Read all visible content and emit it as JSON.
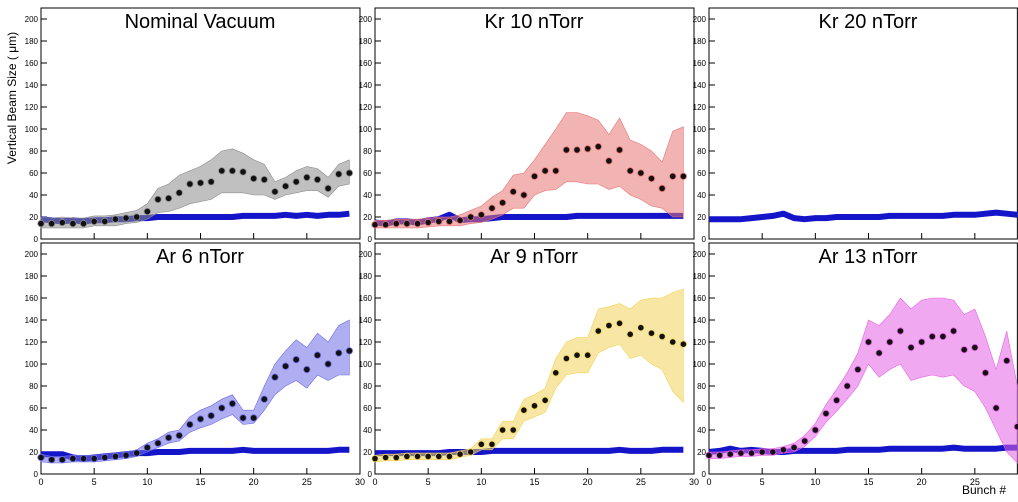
{
  "chart_data": [
    {
      "type": "line",
      "title": "Nominal Vacuum",
      "ylabel": "Vertical Beam Size ( μm)",
      "x": [
        0,
        1,
        2,
        3,
        4,
        5,
        6,
        7,
        8,
        9,
        10,
        11,
        12,
        13,
        14,
        15,
        16,
        17,
        18,
        19,
        20,
        21,
        22,
        23,
        24,
        25,
        26,
        27,
        28,
        29
      ],
      "xlim": [
        0,
        30
      ],
      "xticks": [
        0,
        5,
        10,
        15,
        20,
        25,
        30
      ],
      "ylim": [
        0,
        210
      ],
      "yticks": [
        0,
        20,
        40,
        60,
        80,
        100,
        120,
        140,
        160,
        180,
        200
      ],
      "series": [
        {
          "color": "#1414c8",
          "values": [
            18,
            17,
            16,
            17,
            16,
            17,
            17,
            18,
            18,
            19,
            19,
            20,
            20,
            20,
            20,
            20,
            20,
            20,
            20,
            21,
            21,
            21,
            21,
            22,
            21,
            22,
            21,
            22,
            22,
            23
          ]
        },
        {
          "color": "#8c8c8c",
          "values": [
            14,
            14,
            15,
            14,
            14,
            16,
            16,
            18,
            19,
            20,
            25,
            36,
            37,
            42,
            50,
            51,
            52,
            62,
            62,
            61,
            55,
            54,
            43,
            48,
            52,
            56,
            54,
            46,
            59,
            60
          ],
          "low": [
            10,
            10,
            10,
            10,
            10,
            12,
            12,
            12,
            14,
            15,
            18,
            24,
            25,
            28,
            32,
            34,
            36,
            42,
            42,
            42,
            40,
            40,
            36,
            40,
            42,
            44,
            44,
            38,
            48,
            50
          ],
          "high": [
            20,
            19,
            20,
            19,
            19,
            21,
            21,
            22,
            24,
            26,
            32,
            46,
            50,
            58,
            62,
            66,
            72,
            80,
            82,
            78,
            72,
            68,
            52,
            56,
            62,
            66,
            64,
            56,
            68,
            72
          ]
        }
      ]
    },
    {
      "type": "line",
      "title": "Kr 10 nTorr",
      "x": [
        0,
        1,
        2,
        3,
        4,
        5,
        6,
        7,
        8,
        9,
        10,
        11,
        12,
        13,
        14,
        15,
        16,
        17,
        18,
        19,
        20,
        21,
        22,
        23,
        24,
        25,
        26,
        27,
        28,
        29
      ],
      "xlim": [
        0,
        30
      ],
      "xticks": [
        0,
        5,
        10,
        15,
        20,
        25,
        30
      ],
      "ylim": [
        0,
        210
      ],
      "yticks": [
        0,
        20,
        40,
        60,
        80,
        100,
        120,
        140,
        160,
        180,
        200
      ],
      "series": [
        {
          "color": "#1414c8",
          "values": [
            15,
            14,
            16,
            16,
            15,
            17,
            18,
            22,
            17,
            18,
            18,
            19,
            20,
            20,
            20,
            20,
            20,
            20,
            20,
            21,
            21,
            21,
            21,
            21,
            21,
            21,
            21,
            21,
            21,
            21
          ]
        },
        {
          "color": "#e87474",
          "values": [
            13,
            13,
            14,
            14,
            14,
            15,
            16,
            16,
            17,
            20,
            22,
            28,
            33,
            43,
            40,
            57,
            62,
            62,
            81,
            81,
            82,
            84,
            71,
            81,
            62,
            60,
            55,
            46,
            57,
            57
          ],
          "low": [
            10,
            10,
            10,
            10,
            10,
            11,
            12,
            12,
            12,
            14,
            15,
            18,
            22,
            28,
            28,
            40,
            44,
            45,
            52,
            52,
            50,
            50,
            45,
            48,
            40,
            36,
            30,
            28,
            20,
            20
          ],
          "high": [
            17,
            17,
            18,
            18,
            18,
            19,
            20,
            20,
            22,
            26,
            30,
            38,
            44,
            58,
            60,
            72,
            86,
            100,
            115,
            115,
            112,
            108,
            95,
            110,
            90,
            86,
            80,
            70,
            98,
            102
          ]
        }
      ]
    },
    {
      "type": "line",
      "title": "Kr 20 nTorr",
      "x": [
        0,
        1,
        2,
        3,
        4,
        5,
        6,
        7,
        8,
        9,
        10,
        11,
        12,
        13,
        14,
        15,
        16,
        17,
        18,
        19,
        20,
        21,
        22,
        23,
        24,
        25,
        26,
        27,
        28,
        29
      ],
      "xlim": [
        0,
        29
      ],
      "xticks": [
        0,
        5,
        10,
        15,
        20,
        25
      ],
      "ylim": [
        0,
        210
      ],
      "yticks": [
        0,
        20,
        40,
        60,
        80,
        100,
        120,
        140,
        160,
        180,
        200
      ],
      "series": [
        {
          "color": "#1414c8",
          "values": [
            18,
            18,
            18,
            18,
            19,
            20,
            21,
            23,
            19,
            18,
            19,
            19,
            20,
            20,
            20,
            20,
            20,
            21,
            21,
            21,
            21,
            21,
            21,
            22,
            22,
            22,
            23,
            24,
            23,
            22
          ]
        }
      ]
    },
    {
      "type": "line",
      "title": "Ar 6 nTorr",
      "x": [
        0,
        1,
        2,
        3,
        4,
        5,
        6,
        7,
        8,
        9,
        10,
        11,
        12,
        13,
        14,
        15,
        16,
        17,
        18,
        19,
        20,
        21,
        22,
        23,
        24,
        25,
        26,
        27,
        28,
        29
      ],
      "xlim": [
        0,
        30
      ],
      "xticks": [
        0,
        5,
        10,
        15,
        20,
        25,
        30
      ],
      "ylim": [
        0,
        210
      ],
      "yticks": [
        0,
        20,
        40,
        60,
        80,
        100,
        120,
        140,
        160,
        180,
        200
      ],
      "series": [
        {
          "color": "#1414c8",
          "values": [
            18,
            18,
            18,
            15,
            14,
            15,
            16,
            17,
            18,
            19,
            19,
            20,
            20,
            20,
            21,
            21,
            21,
            21,
            21,
            22,
            21,
            21,
            21,
            21,
            21,
            21,
            21,
            21,
            22,
            22
          ]
        },
        {
          "color": "#6c6ce4",
          "values": [
            15,
            13,
            13,
            14,
            14,
            14,
            15,
            16,
            17,
            19,
            24,
            28,
            33,
            35,
            45,
            50,
            53,
            60,
            64,
            51,
            51,
            68,
            88,
            98,
            104,
            95,
            108,
            100,
            110,
            112
          ],
          "low": [
            11,
            10,
            10,
            11,
            11,
            11,
            12,
            13,
            14,
            16,
            20,
            24,
            28,
            30,
            38,
            42,
            45,
            50,
            54,
            45,
            46,
            58,
            72,
            80,
            85,
            78,
            90,
            85,
            90,
            90
          ],
          "high": [
            18,
            16,
            16,
            17,
            17,
            17,
            18,
            19,
            20,
            22,
            28,
            32,
            38,
            40,
            52,
            58,
            62,
            68,
            72,
            58,
            58,
            80,
            100,
            112,
            122,
            115,
            128,
            120,
            135,
            140
          ]
        }
      ]
    },
    {
      "type": "line",
      "title": "Ar 9 nTorr",
      "x": [
        0,
        1,
        2,
        3,
        4,
        5,
        6,
        7,
        8,
        9,
        10,
        11,
        12,
        13,
        14,
        15,
        16,
        17,
        18,
        19,
        20,
        21,
        22,
        23,
        24,
        25,
        26,
        27,
        28,
        29
      ],
      "xlim": [
        0,
        30
      ],
      "xticks": [
        0,
        5,
        10,
        15,
        20,
        25,
        30
      ],
      "ylim": [
        0,
        210
      ],
      "yticks": [
        0,
        20,
        40,
        60,
        80,
        100,
        120,
        140,
        160,
        180,
        200
      ],
      "series": [
        {
          "color": "#1414c8",
          "values": [
            19,
            19,
            19,
            19,
            19,
            19,
            19,
            20,
            20,
            20,
            20,
            21,
            21,
            21,
            21,
            21,
            21,
            21,
            21,
            21,
            21,
            21,
            21,
            22,
            21,
            21,
            21,
            22,
            22,
            22
          ]
        },
        {
          "color": "#f2d45a",
          "values": [
            14,
            15,
            15,
            16,
            16,
            16,
            16,
            16,
            18,
            20,
            27,
            27,
            40,
            40,
            58,
            62,
            67,
            92,
            105,
            108,
            108,
            130,
            135,
            137,
            127,
            133,
            128,
            125,
            120,
            118
          ],
          "low": [
            11,
            12,
            12,
            13,
            13,
            13,
            13,
            13,
            15,
            17,
            22,
            22,
            32,
            32,
            48,
            52,
            56,
            78,
            90,
            92,
            92,
            110,
            115,
            118,
            105,
            108,
            100,
            95,
            75,
            65
          ],
          "high": [
            17,
            18,
            18,
            19,
            19,
            19,
            19,
            19,
            21,
            23,
            32,
            32,
            48,
            48,
            68,
            72,
            78,
            105,
            120,
            124,
            124,
            150,
            152,
            155,
            150,
            158,
            160,
            160,
            165,
            168
          ]
        }
      ]
    },
    {
      "type": "line",
      "title": "Ar 13 nTorr",
      "xlabel": "Bunch #",
      "x": [
        0,
        1,
        2,
        3,
        4,
        5,
        6,
        7,
        8,
        9,
        10,
        11,
        12,
        13,
        14,
        15,
        16,
        17,
        18,
        19,
        20,
        21,
        22,
        23,
        24,
        25,
        26,
        27,
        28,
        29
      ],
      "xlim": [
        0,
        29
      ],
      "xticks": [
        0,
        5,
        10,
        15,
        20,
        25
      ],
      "ylim": [
        0,
        210
      ],
      "yticks": [
        0,
        20,
        40,
        60,
        80,
        100,
        120,
        140,
        160,
        180,
        200
      ],
      "series": [
        {
          "color": "#1414c8",
          "values": [
            20,
            21,
            23,
            21,
            22,
            21,
            20,
            20,
            21,
            21,
            21,
            21,
            21,
            22,
            22,
            22,
            22,
            23,
            23,
            23,
            23,
            23,
            23,
            24,
            23,
            23,
            23,
            23,
            24,
            24
          ]
        },
        {
          "color": "#e462e4",
          "values": [
            17,
            17,
            18,
            19,
            19,
            20,
            20,
            22,
            24,
            30,
            40,
            55,
            67,
            80,
            95,
            120,
            110,
            120,
            130,
            115,
            120,
            125,
            125,
            130,
            113,
            115,
            92,
            60,
            103,
            43
          ],
          "low": [
            14,
            14,
            15,
            16,
            16,
            17,
            17,
            19,
            20,
            25,
            34,
            47,
            57,
            68,
            80,
            100,
            88,
            95,
            100,
            85,
            88,
            90,
            88,
            90,
            80,
            75,
            60,
            40,
            20,
            10
          ],
          "high": [
            20,
            20,
            21,
            22,
            22,
            23,
            23,
            25,
            28,
            35,
            46,
            63,
            77,
            92,
            110,
            140,
            135,
            145,
            160,
            150,
            158,
            160,
            160,
            158,
            145,
            150,
            125,
            95,
            130,
            80
          ]
        }
      ]
    }
  ]
}
